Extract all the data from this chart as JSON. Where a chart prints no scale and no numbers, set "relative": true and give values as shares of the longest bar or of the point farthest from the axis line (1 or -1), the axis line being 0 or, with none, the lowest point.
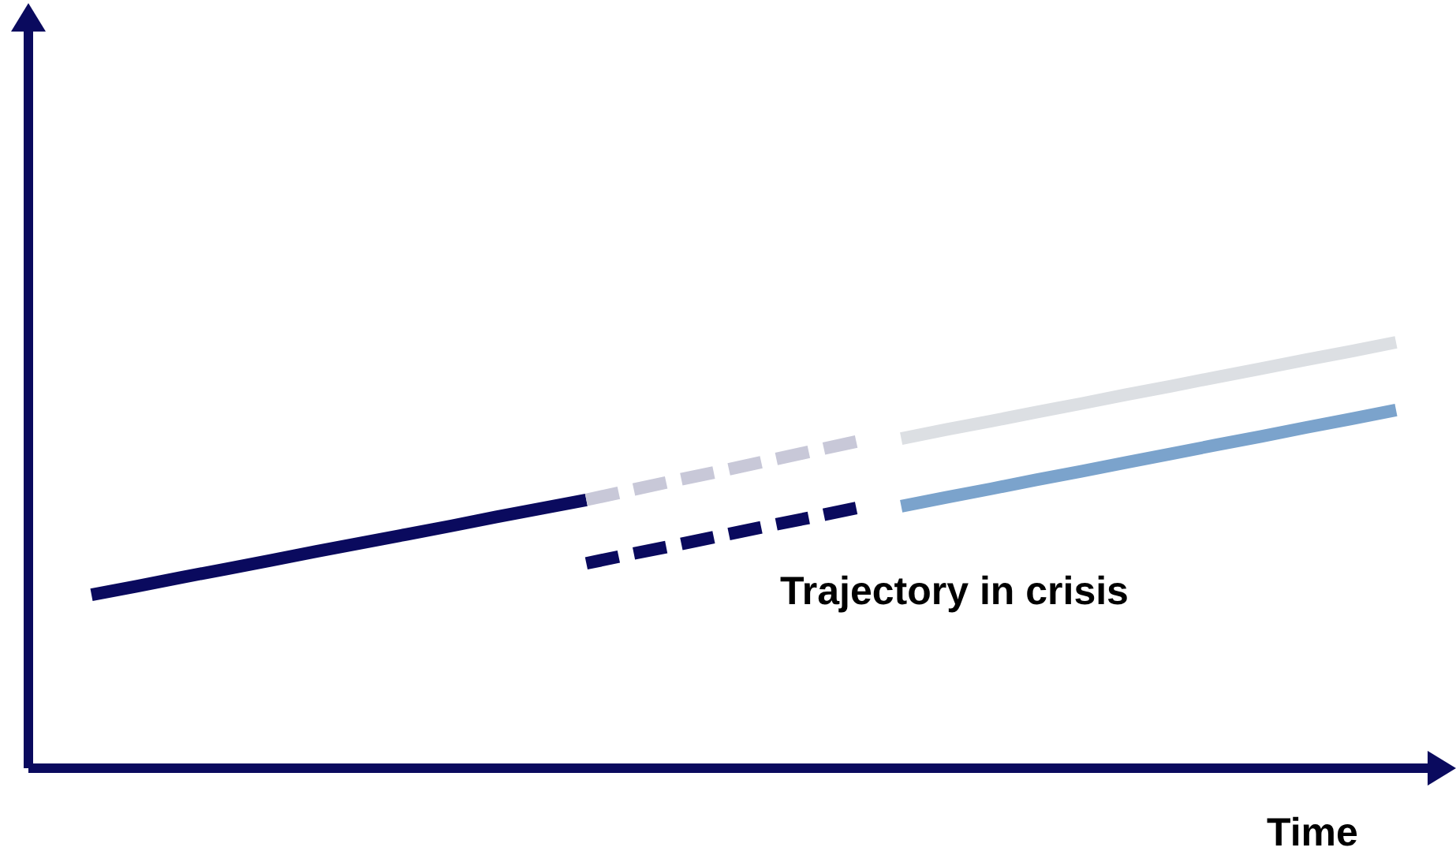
{
  "chart_data": {
    "type": "line",
    "relative": true,
    "xlabel": "Time",
    "marker": "none",
    "categories": [
      null,
      null,
      null,
      null,
      null,
      null,
      null,
      null,
      null,
      null,
      null,
      null,
      null,
      null,
      null,
      null,
      null,
      null,
      null,
      null,
      null,
      null,
      null,
      null,
      null,
      null,
      null,
      null,
      null,
      null
    ],
    "series": [
      {
        "color": "#0a0a5e",
        "line_style": "solid",
        "values": [
          0.407,
          0.427,
          0.448,
          0.468,
          0.488,
          0.509,
          0.529,
          0.549,
          0.569,
          0.59,
          0.61,
          0.63,
          null,
          null,
          null,
          null,
          null,
          null,
          null,
          null,
          null,
          null,
          null,
          null,
          null,
          null,
          null,
          null,
          null,
          null
        ]
      },
      {
        "color": "#c8c8d8",
        "line_style": "dashed",
        "values": [
          null,
          null,
          null,
          null,
          null,
          null,
          null,
          null,
          null,
          null,
          null,
          0.63,
          0.653,
          0.676,
          0.698,
          0.721,
          0.744,
          0.767,
          null,
          null,
          null,
          null,
          null,
          null,
          null,
          null,
          null,
          null,
          null,
          null
        ]
      },
      {
        "color": "#dcdfe3",
        "line_style": "solid",
        "values": [
          null,
          null,
          null,
          null,
          null,
          null,
          null,
          null,
          null,
          null,
          null,
          null,
          null,
          null,
          null,
          null,
          null,
          null,
          0.774,
          0.795,
          0.815,
          0.836,
          0.856,
          0.877,
          0.897,
          0.918,
          0.938,
          0.959,
          0.979,
          1
        ]
      },
      {
        "color": "#0a0a5e",
        "line_style": "dashed",
        "values": [
          null,
          null,
          null,
          null,
          null,
          null,
          null,
          null,
          null,
          null,
          null,
          0.481,
          0.503,
          0.524,
          0.546,
          0.568,
          0.589,
          0.611,
          null,
          null,
          null,
          null,
          null,
          null,
          null,
          null,
          null,
          null,
          null,
          null
        ]
      },
      {
        "color": "#7ba3cc",
        "line_style": "solid",
        "values": [
          null,
          null,
          null,
          null,
          null,
          null,
          null,
          null,
          null,
          null,
          null,
          null,
          null,
          null,
          null,
          null,
          null,
          null,
          0.615,
          0.636,
          0.656,
          0.677,
          0.697,
          0.718,
          0.738,
          0.759,
          0.779,
          0.8,
          0.82,
          0.841
        ]
      }
    ],
    "annotations": [
      "Trajectory in crisis"
    ]
  }
}
